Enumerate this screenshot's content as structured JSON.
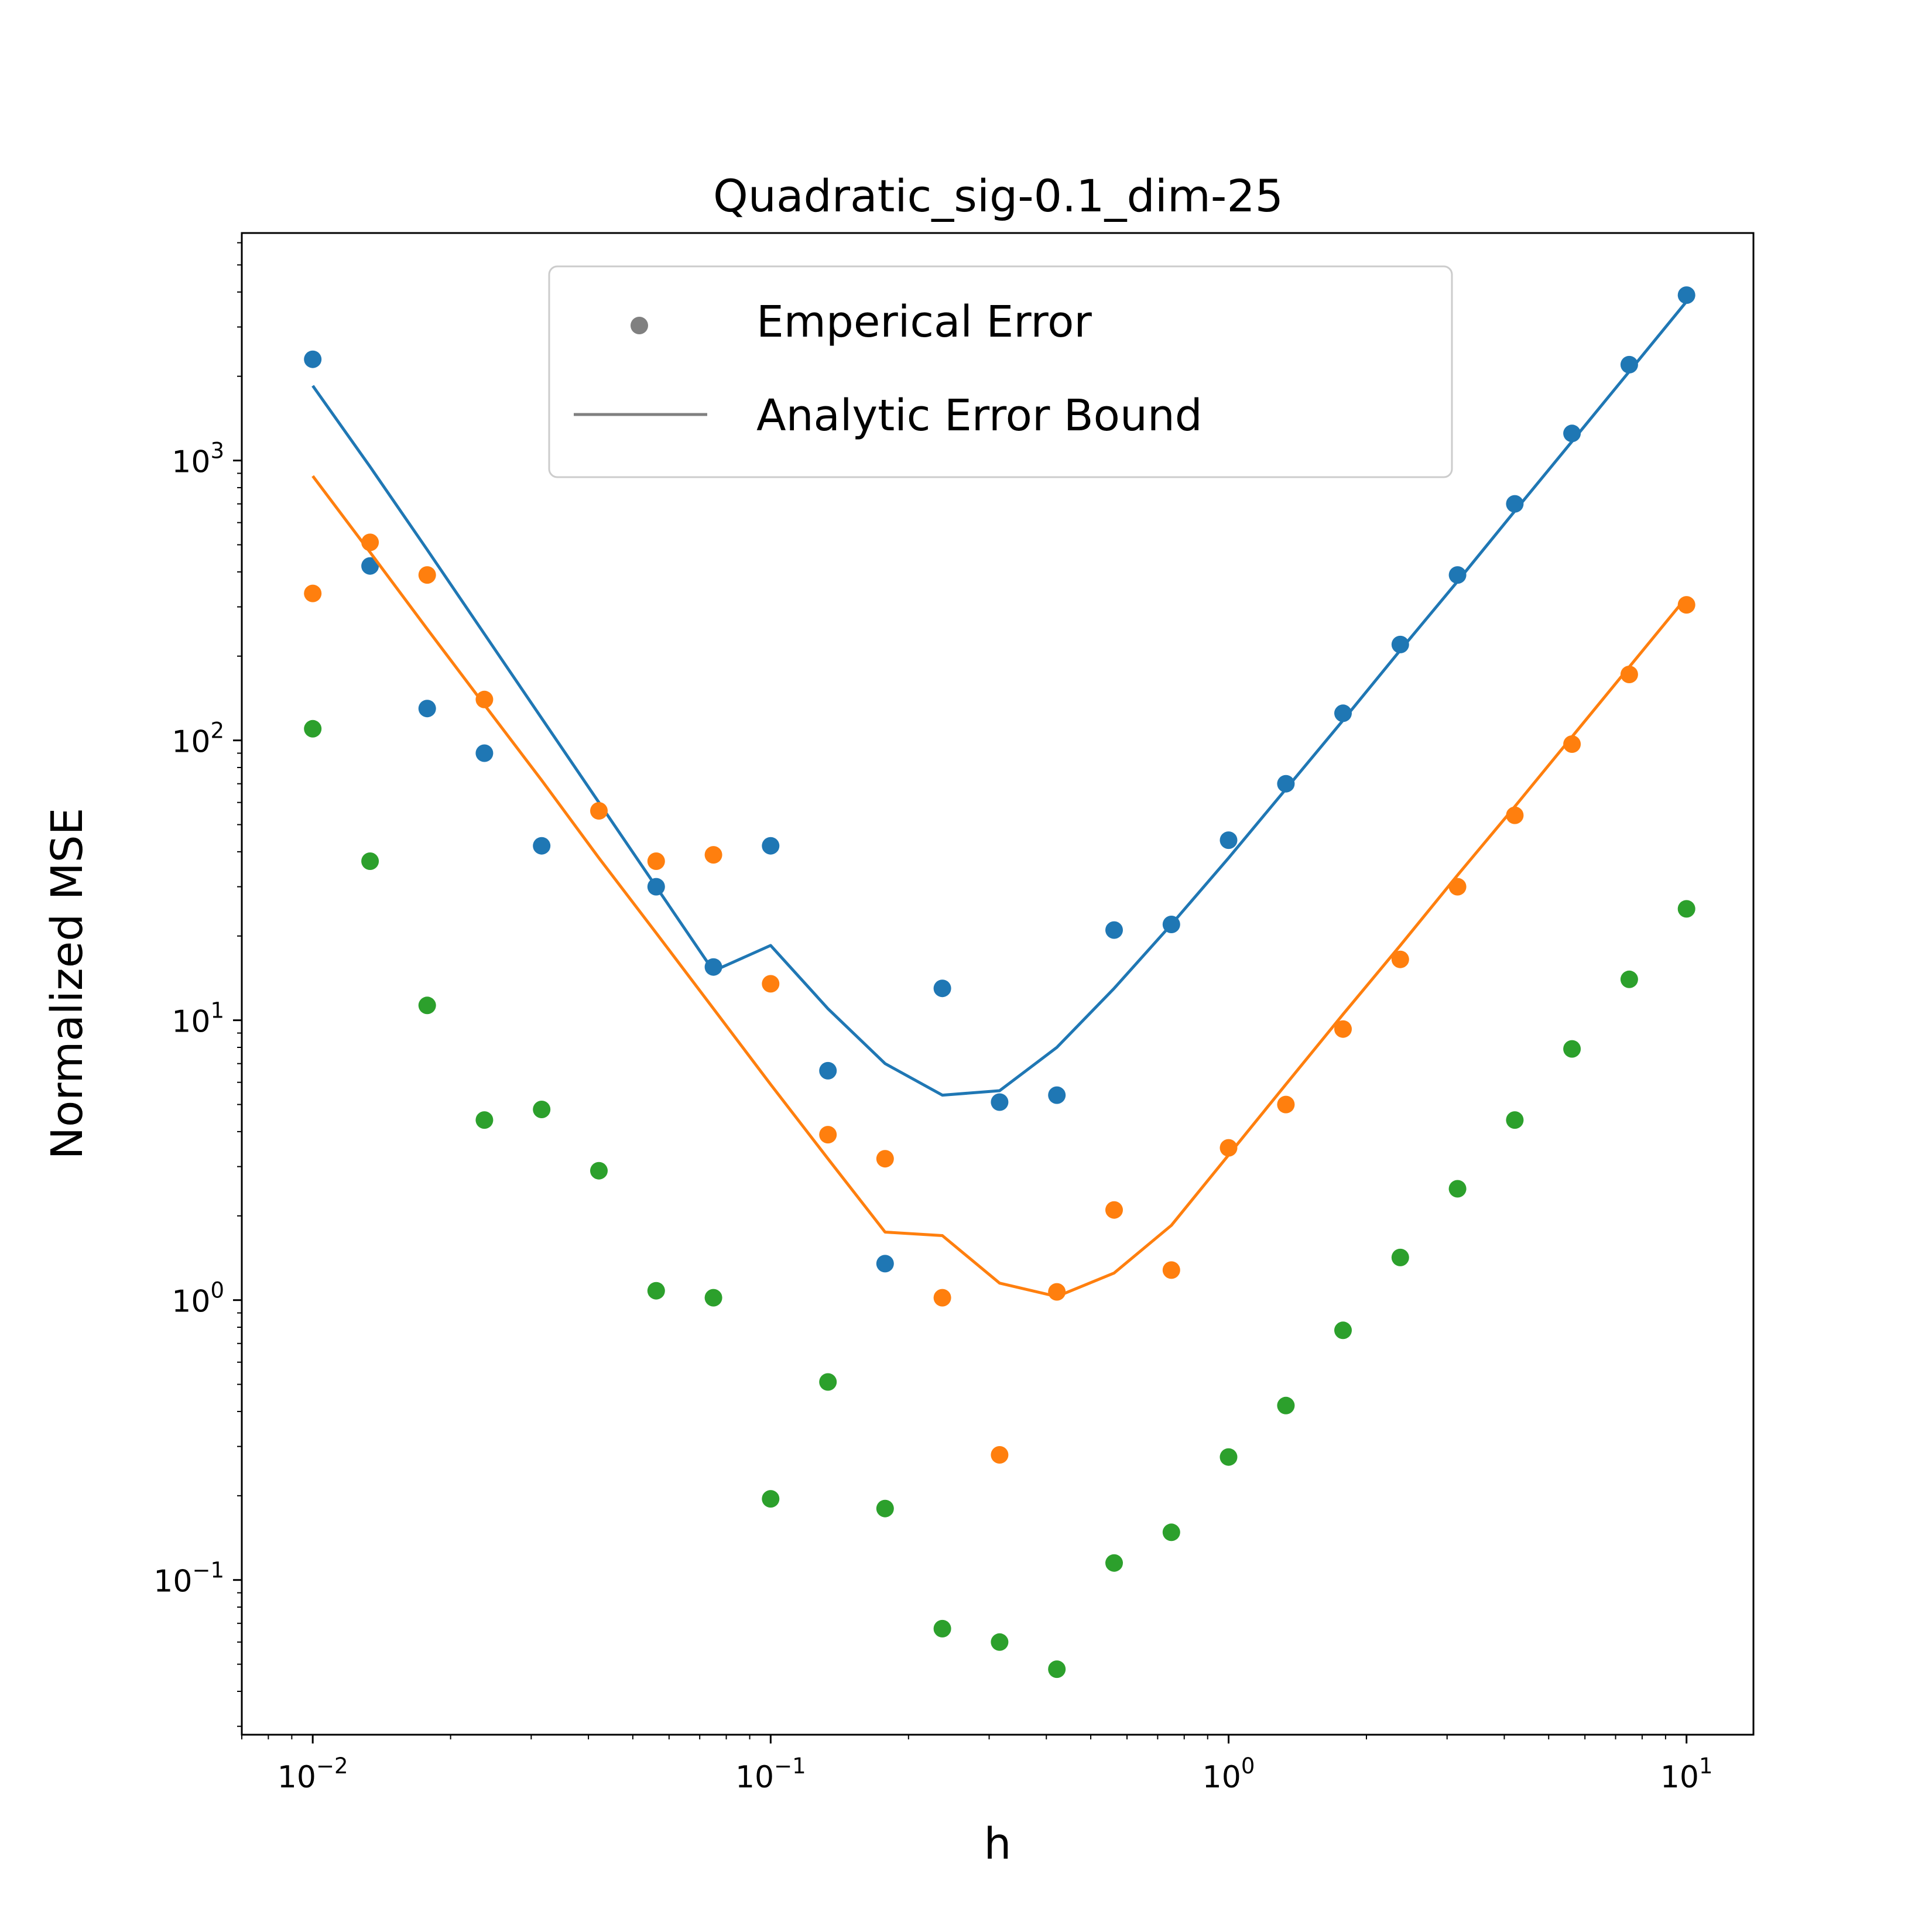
{
  "chart_data": {
    "type": "scatter",
    "title": "Quadratic_sig-0.1_dim-25",
    "xlabel": "h",
    "ylabel": "Normalized MSE",
    "xscale": "log",
    "yscale": "log",
    "xlim": [
      0.007,
      14
    ],
    "ylim": [
      0.028,
      6500
    ],
    "x_ticks": [
      {
        "value": 0.01,
        "base": "10",
        "exp": "−2"
      },
      {
        "value": 0.1,
        "base": "10",
        "exp": "−1"
      },
      {
        "value": 1,
        "base": "10",
        "exp": "0"
      },
      {
        "value": 10,
        "base": "10",
        "exp": "1"
      }
    ],
    "y_ticks": [
      {
        "value": 0.1,
        "base": "10",
        "exp": "−1"
      },
      {
        "value": 1,
        "base": "10",
        "exp": "0"
      },
      {
        "value": 10,
        "base": "10",
        "exp": "1"
      },
      {
        "value": 100,
        "base": "10",
        "exp": "2"
      },
      {
        "value": 1000,
        "base": "10",
        "exp": "3"
      }
    ],
    "grid": false,
    "legend_position": "top-center",
    "legend": [
      {
        "label": "Emperical Error",
        "marker": "dot",
        "color": "#808080"
      },
      {
        "label": "Analytic Error Bound",
        "marker": "line",
        "color": "#808080"
      }
    ],
    "x": [
      0.01,
      0.01334,
      0.01778,
      0.02371,
      0.03162,
      0.04217,
      0.05623,
      0.07499,
      0.1,
      0.1334,
      0.1778,
      0.2371,
      0.3162,
      0.4217,
      0.5623,
      0.7499,
      1.0,
      1.334,
      1.778,
      2.371,
      3.162,
      4.217,
      5.623,
      7.499,
      10.0
    ],
    "series": [
      {
        "color": "#1f77b4",
        "empirical": [
          2300,
          420,
          130,
          90,
          42,
          null,
          30,
          15.5,
          42,
          6.6,
          1.35,
          13,
          5.1,
          5.4,
          21,
          22,
          44,
          70,
          125,
          220,
          390,
          700,
          1250,
          2200,
          3900
        ],
        "bound": [
          1850,
          950,
          480,
          240,
          120,
          60,
          30,
          15,
          18.5,
          11,
          7.0,
          5.4,
          5.6,
          8.0,
          13,
          22,
          38,
          67,
          118,
          210,
          370,
          660,
          1170,
          2080,
          3700
        ]
      },
      {
        "color": "#ff7f0e",
        "empirical": [
          335,
          510,
          390,
          140,
          null,
          56,
          37,
          39,
          13.5,
          3.9,
          3.2,
          1.02,
          0.28,
          1.07,
          2.1,
          1.28,
          3.5,
          5.0,
          9.3,
          16.5,
          30,
          54,
          97,
          172,
          305
        ],
        "bound": [
          880,
          470,
          250,
          134,
          72,
          38,
          20.5,
          11,
          5.9,
          3.2,
          1.75,
          1.7,
          1.15,
          1.03,
          1.25,
          1.85,
          3.3,
          5.9,
          10.5,
          18.5,
          33,
          58,
          103,
          183,
          325
        ]
      },
      {
        "color": "#2ca02c",
        "empirical": [
          110,
          37,
          11.3,
          4.4,
          4.8,
          2.9,
          1.08,
          1.02,
          0.195,
          0.51,
          0.18,
          0.067,
          0.06,
          0.048,
          0.115,
          0.148,
          0.275,
          0.42,
          0.78,
          1.42,
          2.5,
          4.4,
          7.9,
          14,
          25
        ]
      }
    ]
  }
}
